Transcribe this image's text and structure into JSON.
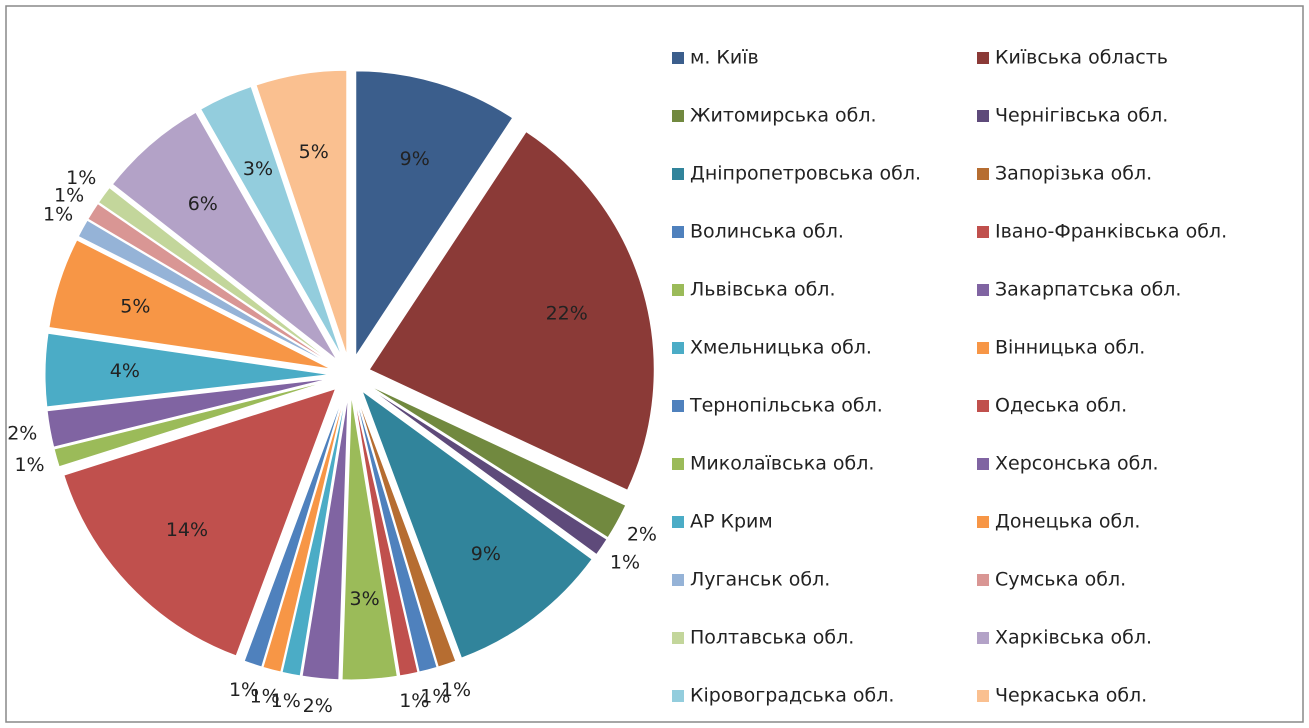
{
  "chart_data": {
    "type": "pie",
    "categories": [
      "м. Київ",
      "Київська область",
      "Житомирська обл.",
      "Чернігівська обл.",
      "Дніпропетровська обл.",
      "Запорізька обл.",
      "Волинська обл.",
      "Івано-Франківська обл.",
      "Львівська обл.",
      "Закарпатська обл.",
      "Хмельницька обл.",
      "Вінницька обл.",
      "Тернопільська обл.",
      "Одеська обл.",
      "Миколаївська обл.",
      "Херсонська обл.",
      "АР Крим",
      "Донецька обл.",
      "Луганськ обл.",
      "Сумська обл.",
      "Полтавська обл.",
      "Харківська обл.",
      "Кіровоградська обл.",
      "Черкаська обл."
    ],
    "values": [
      9,
      22,
      2,
      1,
      9,
      1,
      1,
      1,
      3,
      2,
      1,
      1,
      1,
      14,
      1,
      2,
      4,
      5,
      1,
      1,
      1,
      6,
      3,
      5
    ],
    "value_labels": [
      "9%",
      "22%",
      "2%",
      "1%",
      "9%",
      "1%",
      "1%",
      "1%",
      "3%",
      "2%",
      "1%",
      "1%",
      "1%",
      "14%",
      "1%",
      "2%",
      "4%",
      "5%",
      "1%",
      "1%",
      "1%",
      "6%",
      "3%",
      "5%"
    ],
    "colors": [
      "#3B5E8C",
      "#8B3A37",
      "#71893F",
      "#5E4A7A",
      "#31849B",
      "#B66D31",
      "#4F81BD",
      "#C0504D",
      "#9BBB59",
      "#8064A2",
      "#4BACC6",
      "#F79646",
      "#4F81BD",
      "#C0504D",
      "#9BBB59",
      "#8064A2",
      "#4BACC6",
      "#F79646",
      "#95B3D7",
      "#D99694",
      "#C3D69B",
      "#B3A2C7",
      "#93CDDD",
      "#FAC090"
    ],
    "legend": "right"
  }
}
